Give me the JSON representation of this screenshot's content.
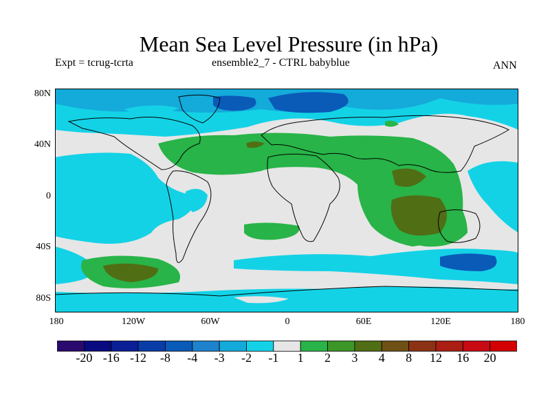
{
  "header": {
    "title": "Mean Sea Level Pressure (in hPa)",
    "expt": "Expt = tcrug-tcrta",
    "ensemble": "ensemble2_7 - CTRL babyblue",
    "season": "ANN"
  },
  "axes": {
    "lat_labels": [
      "80N",
      "40N",
      "0",
      "40S",
      "80S"
    ],
    "lon_labels": [
      "180",
      "120W",
      "60W",
      "0",
      "60E",
      "120E",
      "180"
    ]
  },
  "colorbar": {
    "labels": [
      "-20",
      "-16",
      "-12",
      "-8",
      "-4",
      "-3",
      "-2",
      "-1",
      "1",
      "2",
      "3",
      "4",
      "8",
      "12",
      "16",
      "20"
    ],
    "colors": [
      "#2a0a6e",
      "#0a0a80",
      "#0a1e96",
      "#0a3ca8",
      "#0a5ab8",
      "#1e82cc",
      "#14aada",
      "#14d2e6",
      "#e6e6e6",
      "#28b448",
      "#3c9628",
      "#506e14",
      "#6e5014",
      "#8c3214",
      "#aa1e14",
      "#c80a14",
      "#d20000"
    ]
  },
  "colors": {
    "neutral": "#e6e6e6",
    "neg_weak": "#14d2e6",
    "neg_mod": "#14aada",
    "neg_strong": "#0a5ab8",
    "neg_vstrong": "#0a3ca8",
    "pos_weak": "#28b448",
    "pos_mod": "#506e14"
  }
}
